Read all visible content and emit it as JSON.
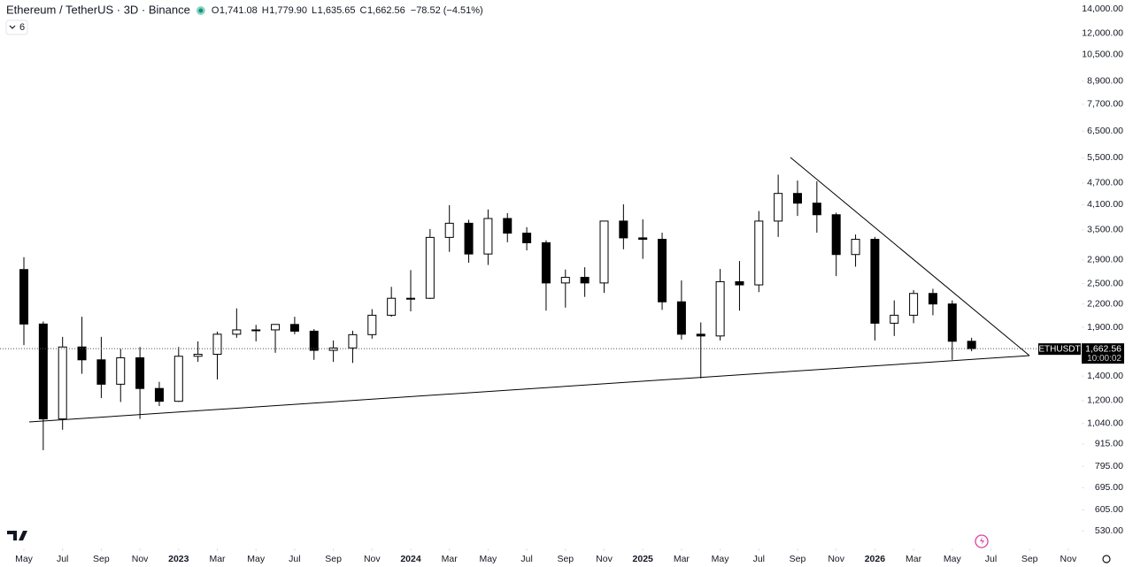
{
  "header": {
    "symbol": "Ethereum / TetherUS · 3D · Binance",
    "ohlc": [
      "O",
      "1,741.08",
      "H",
      "1,779.90",
      "L",
      "1,635.65",
      "C",
      "1,662.56"
    ],
    "change": "−78.52 (−4.51%)",
    "indicator": "6"
  },
  "chart_data": {
    "type": "candlestick",
    "log_scale": true,
    "up_color": "#ffffff",
    "down_color": "#000000",
    "outline_color": "#000000",
    "x": [
      "2022-05",
      "2022-06",
      "2022-07",
      "2022-08",
      "2022-09",
      "2022-10",
      "2022-11",
      "2022-12",
      "2023-01",
      "2023-02",
      "2023-03",
      "2023-04",
      "2023-05",
      "2023-06",
      "2023-07",
      "2023-08",
      "2023-09",
      "2023-10",
      "2023-11",
      "2023-12",
      "2024-01",
      "2024-02",
      "2024-03",
      "2024-04",
      "2024-05",
      "2024-06",
      "2024-07",
      "2024-08",
      "2024-09",
      "2024-10",
      "2024-11",
      "2024-12",
      "2025-01",
      "2025-02",
      "2025-03",
      "2025-04",
      "2025-05",
      "2025-06",
      "2025-07",
      "2025-08",
      "2025-09",
      "2025-10",
      "2025-11",
      "2025-12",
      "2026-01",
      "2026-02",
      "2026-03",
      "2026-04",
      "2026-05",
      "2026-06"
    ],
    "open": [
      2730,
      1940,
      1070,
      1680,
      1550,
      1330,
      1570,
      1295,
      1195,
      1585,
      1605,
      1820,
      1870,
      1870,
      1935,
      1855,
      1645,
      1670,
      1815,
      2050,
      2280,
      2280,
      3340,
      3650,
      3010,
      3760,
      3430,
      3230,
      2510,
      2600,
      2510,
      3700,
      3330,
      3300,
      2230,
      1820,
      1800,
      2530,
      2480,
      3700,
      4400,
      4140,
      3850,
      3000,
      3300,
      1950,
      2050,
      2350,
      2200,
      1741.08
    ],
    "high": [
      2950,
      1970,
      1790,
      2030,
      1790,
      1660,
      1680,
      1350,
      1680,
      1740,
      1850,
      2140,
      1930,
      1930,
      2030,
      1880,
      1750,
      1860,
      2130,
      2450,
      2720,
      3520,
      4090,
      3730,
      3980,
      3890,
      3560,
      3280,
      2730,
      2770,
      3680,
      4110,
      3740,
      3440,
      2550,
      1960,
      2740,
      2880,
      3940,
      4950,
      4770,
      4750,
      3900,
      3400,
      3350,
      2250,
      2400,
      2420,
      2250,
      1779.9
    ],
    "low": [
      1700,
      880,
      1000,
      1420,
      1220,
      1190,
      1070,
      1160,
      1190,
      1530,
      1370,
      1780,
      1740,
      1620,
      1820,
      1550,
      1530,
      1520,
      1770,
      2030,
      2100,
      2270,
      3050,
      2850,
      2810,
      3240,
      3080,
      2110,
      2150,
      2300,
      2360,
      3100,
      2920,
      2120,
      1760,
      1380,
      1750,
      2110,
      2370,
      3350,
      3820,
      3440,
      2620,
      2780,
      1750,
      1800,
      1950,
      2050,
      1550,
      1635.65
    ],
    "close": [
      1940,
      1070,
      1680,
      1550,
      1330,
      1570,
      1295,
      1195,
      1585,
      1605,
      1820,
      1870,
      1870,
      1935,
      1855,
      1645,
      1670,
      1815,
      2050,
      2280,
      2280,
      3340,
      3650,
      3010,
      3760,
      3430,
      3230,
      2510,
      2600,
      2510,
      3700,
      3330,
      3300,
      2230,
      1820,
      1800,
      2530,
      2480,
      3700,
      4400,
      4140,
      3850,
      3000,
      3300,
      1950,
      2050,
      2350,
      2200,
      1741.08,
      1662.56
    ],
    "ylim": [
      475,
      14800
    ],
    "yticks": [
      {
        "value": 14000,
        "label": "14,000.00"
      },
      {
        "value": 12000,
        "label": "12,000.00"
      },
      {
        "value": 10500,
        "label": "10,500.00"
      },
      {
        "value": 8900,
        "label": "8,900.00"
      },
      {
        "value": 7700,
        "label": "7,700.00"
      },
      {
        "value": 6500,
        "label": "6,500.00"
      },
      {
        "value": 5500,
        "label": "5,500.00"
      },
      {
        "value": 4700,
        "label": "4,700.00"
      },
      {
        "value": 4100,
        "label": "4,100.00"
      },
      {
        "value": 3500,
        "label": "3,500.00"
      },
      {
        "value": 2900,
        "label": "2,900.00"
      },
      {
        "value": 2500,
        "label": "2,500.00"
      },
      {
        "value": 2200,
        "label": "2,200.00"
      },
      {
        "value": 1900,
        "label": "1,900.00"
      },
      {
        "value": 1400,
        "label": "1,400.00"
      },
      {
        "value": 1200,
        "label": "1,200.00"
      },
      {
        "value": 1040,
        "label": "1,040.00"
      },
      {
        "value": 915,
        "label": "915.00"
      },
      {
        "value": 795,
        "label": "795.00"
      },
      {
        "value": 695,
        "label": "695.00"
      },
      {
        "value": 605,
        "label": "605.00"
      },
      {
        "value": 530,
        "label": "530.00"
      }
    ],
    "xticks": [
      {
        "value": "2022-05",
        "label": "May"
      },
      {
        "value": "2022-07",
        "label": "Jul"
      },
      {
        "value": "2022-09",
        "label": "Sep"
      },
      {
        "value": "2022-11",
        "label": "Nov"
      },
      {
        "value": "2023-01",
        "label": "2023"
      },
      {
        "value": "2023-03",
        "label": "Mar"
      },
      {
        "value": "2023-05",
        "label": "May"
      },
      {
        "value": "2023-07",
        "label": "Jul"
      },
      {
        "value": "2023-09",
        "label": "Sep"
      },
      {
        "value": "2023-11",
        "label": "Nov"
      },
      {
        "value": "2024-01",
        "label": "2024"
      },
      {
        "value": "2024-03",
        "label": "Mar"
      },
      {
        "value": "2024-05",
        "label": "May"
      },
      {
        "value": "2024-07",
        "label": "Jul"
      },
      {
        "value": "2024-09",
        "label": "Sep"
      },
      {
        "value": "2024-11",
        "label": "Nov"
      },
      {
        "value": "2025-01",
        "label": "2025"
      },
      {
        "value": "2025-03",
        "label": "Mar"
      },
      {
        "value": "2025-05",
        "label": "May"
      },
      {
        "value": "2025-07",
        "label": "Jul"
      },
      {
        "value": "2025-09",
        "label": "Sep"
      },
      {
        "value": "2025-11",
        "label": "Nov"
      },
      {
        "value": "2026-01",
        "label": "2026"
      },
      {
        "value": "2026-03",
        "label": "Mar"
      },
      {
        "value": "2026-05",
        "label": "May"
      },
      {
        "value": "2026-07",
        "label": "Jul"
      },
      {
        "value": "2026-09",
        "label": "Sep"
      },
      {
        "value": "2026-11",
        "label": "Nov"
      }
    ],
    "last_price": {
      "value": 1662.56,
      "label": "1,662.56"
    },
    "ticker": "ETHUSDT",
    "countdown": "10:00:02"
  }
}
